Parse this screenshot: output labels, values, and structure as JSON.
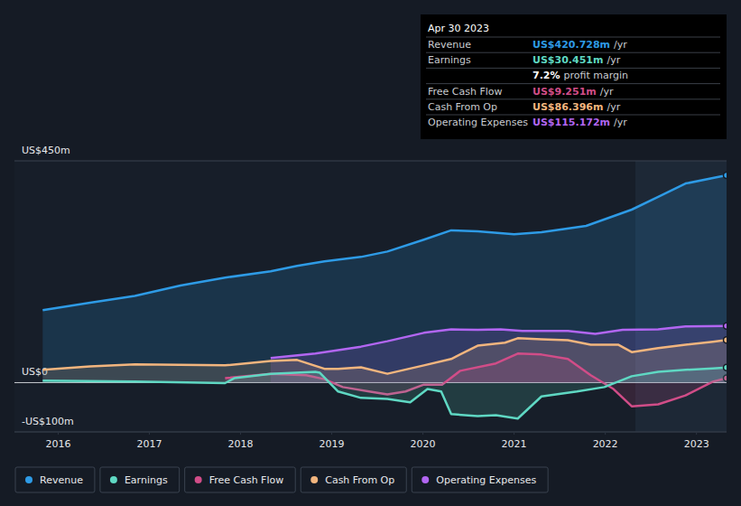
{
  "chart_data": {
    "type": "area",
    "xlim": [
      2015.52,
      2023.33
    ],
    "xticks": [
      2016,
      2017,
      2018,
      2019,
      2020,
      2021,
      2022,
      2023
    ],
    "ylim": [
      -100,
      450
    ],
    "yticks": [
      {
        "value": 450,
        "label": "US$450m"
      },
      {
        "value": 0,
        "label": "US$0"
      },
      {
        "value": -100,
        "label": "-US$100m"
      }
    ],
    "grid": true,
    "legend": "bottom",
    "shaded_range": [
      2022.33,
      2023.33
    ],
    "series": [
      {
        "name": "Revenue",
        "color": "#2e9be6",
        "x": [
          2015.83,
          2016.35,
          2016.84,
          2017.34,
          2017.83,
          2018.33,
          2018.62,
          2018.92,
          2019.32,
          2019.61,
          2020.01,
          2020.31,
          2020.6,
          2021.0,
          2021.3,
          2021.79,
          2022.29,
          2022.58,
          2022.88,
          2023.18,
          2023.33
        ],
        "values": [
          147,
          162,
          176,
          197,
          213,
          226,
          237,
          246,
          255,
          266,
          290,
          309,
          307,
          301,
          305,
          318,
          351,
          377,
          404,
          415,
          420.728
        ]
      },
      {
        "name": "Earnings",
        "color": "#5fd8c3",
        "x": [
          2015.83,
          2016.84,
          2017.83,
          2017.93,
          2018.33,
          2018.82,
          2018.87,
          2019.07,
          2019.32,
          2019.61,
          2019.86,
          2020.05,
          2020.2,
          2020.31,
          2020.6,
          2020.8,
          2021.04,
          2021.3,
          2021.69,
          2021.99,
          2022.29,
          2022.58,
          2022.88,
          2023.18,
          2023.33
        ],
        "values": [
          4,
          2,
          -1,
          9,
          18,
          22,
          20,
          -18,
          -31,
          -33,
          -40,
          -13,
          -18,
          -64,
          -68,
          -66,
          -73,
          -28,
          -18,
          -9,
          13,
          22,
          26,
          29,
          30.451
        ]
      },
      {
        "name": "Free Cash Flow",
        "color": "#d14d88",
        "x": [
          2017.83,
          2018.33,
          2018.72,
          2018.92,
          2019.12,
          2019.41,
          2019.61,
          2019.81,
          2020.01,
          2020.21,
          2020.41,
          2020.8,
          2021.04,
          2021.3,
          2021.59,
          2021.84,
          2022.09,
          2022.29,
          2022.58,
          2022.88,
          2023.18,
          2023.33
        ],
        "values": [
          9,
          18,
          15,
          7,
          -9,
          -18,
          -24,
          -18,
          -4,
          -4,
          24,
          39,
          59,
          57,
          48,
          15,
          -13,
          -48,
          -44,
          -26,
          2,
          9.251
        ]
      },
      {
        "name": "Cash From Op",
        "color": "#f2b57e",
        "x": [
          2015.83,
          2016.35,
          2016.84,
          2017.83,
          2018.33,
          2018.62,
          2018.92,
          2019.07,
          2019.32,
          2019.61,
          2020.01,
          2020.31,
          2020.6,
          2020.9,
          2021.04,
          2021.3,
          2021.59,
          2021.84,
          2022.14,
          2022.29,
          2022.58,
          2022.88,
          2023.18,
          2023.33
        ],
        "values": [
          26,
          33,
          37,
          35,
          44,
          46,
          28,
          28,
          31,
          18,
          35,
          48,
          75,
          81,
          90,
          88,
          86,
          77,
          77,
          62,
          70,
          77,
          83,
          86.396
        ]
      },
      {
        "name": "Operating Expenses",
        "color": "#b266f2",
        "x": [
          2018.33,
          2018.82,
          2019.32,
          2019.61,
          2020.01,
          2020.31,
          2020.6,
          2020.85,
          2021.09,
          2021.59,
          2021.89,
          2022.19,
          2022.58,
          2022.88,
          2023.33
        ],
        "values": [
          50,
          59,
          73,
          84,
          101,
          108,
          107,
          108,
          105,
          105,
          99,
          107,
          108,
          114,
          115.172
        ]
      }
    ],
    "tooltip": {
      "date": "Apr 30 2023",
      "rows": [
        {
          "label": "Revenue",
          "value": "US$420.728m",
          "unit": "/yr",
          "color": "#2e9be6"
        },
        {
          "label": "Earnings",
          "value": "US$30.451m",
          "unit": "/yr",
          "color": "#5fd8c3"
        },
        {
          "value": "7.2%",
          "unit": "profit margin",
          "color": "#ffffff"
        },
        {
          "label": "Free Cash Flow",
          "value": "US$9.251m",
          "unit": "/yr",
          "color": "#d14d88"
        },
        {
          "label": "Cash From Op",
          "value": "US$86.396m",
          "unit": "/yr",
          "color": "#f2b57e"
        },
        {
          "label": "Operating Expenses",
          "value": "US$115.172m",
          "unit": "/yr",
          "color": "#b266f2"
        }
      ]
    }
  }
}
